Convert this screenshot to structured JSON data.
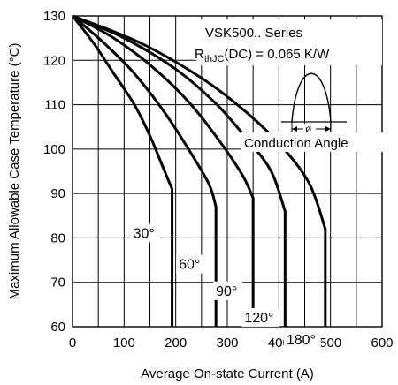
{
  "chart_data": {
    "type": "line",
    "xlabel": "Average On-state Current (A)",
    "ylabel": "Maximum Allowable Case Temperature (°C)",
    "xlim": [
      0,
      600
    ],
    "ylim": [
      60,
      130
    ],
    "x_ticks": [
      "0",
      "100",
      "200",
      "300",
      "400",
      "500",
      "600"
    ],
    "y_ticks": [
      "60",
      "70",
      "80",
      "90",
      "100",
      "110",
      "120",
      "130"
    ],
    "x_tick_values": [
      0,
      100,
      200,
      300,
      400,
      500,
      600
    ],
    "y_tick_values": [
      60,
      70,
      80,
      90,
      100,
      110,
      120,
      130
    ],
    "x_grid_step": 50,
    "y_grid_step": 10,
    "grid": true,
    "annotation": {
      "series_title": "VSK500.. Series",
      "rth_main": "R",
      "rth_sub": "thJC",
      "rth_value": "(DC) = 0.065 K/W",
      "conduction_angle": "Conduction Angle",
      "phi": "ø"
    },
    "series": [
      {
        "name": "30°",
        "points": [
          [
            0,
            130
          ],
          [
            40,
            124
          ],
          [
            80,
            117
          ],
          [
            120,
            110
          ],
          [
            150,
            103
          ],
          [
            175,
            96
          ],
          [
            193,
            91
          ],
          [
            193,
            60
          ]
        ]
      },
      {
        "name": "60°",
        "points": [
          [
            0,
            130
          ],
          [
            60,
            124
          ],
          [
            120,
            117
          ],
          [
            180,
            108
          ],
          [
            230,
            99
          ],
          [
            265,
            92
          ],
          [
            278,
            87
          ],
          [
            278,
            60
          ]
        ]
      },
      {
        "name": "90°",
        "points": [
          [
            0,
            130
          ],
          [
            80,
            125
          ],
          [
            160,
            118
          ],
          [
            230,
            110
          ],
          [
            290,
            101
          ],
          [
            330,
            94
          ],
          [
            350,
            89
          ],
          [
            350,
            60
          ]
        ]
      },
      {
        "name": "120°",
        "points": [
          [
            0,
            130
          ],
          [
            100,
            125
          ],
          [
            200,
            118
          ],
          [
            280,
            110
          ],
          [
            340,
            102
          ],
          [
            385,
            95
          ],
          [
            412,
            86
          ],
          [
            412,
            60
          ]
        ]
      },
      {
        "name": "180°",
        "points": [
          [
            0,
            130
          ],
          [
            130,
            124
          ],
          [
            250,
            116
          ],
          [
            340,
            108
          ],
          [
            410,
            100
          ],
          [
            460,
            92
          ],
          [
            490,
            82
          ],
          [
            490,
            60
          ]
        ]
      }
    ]
  }
}
